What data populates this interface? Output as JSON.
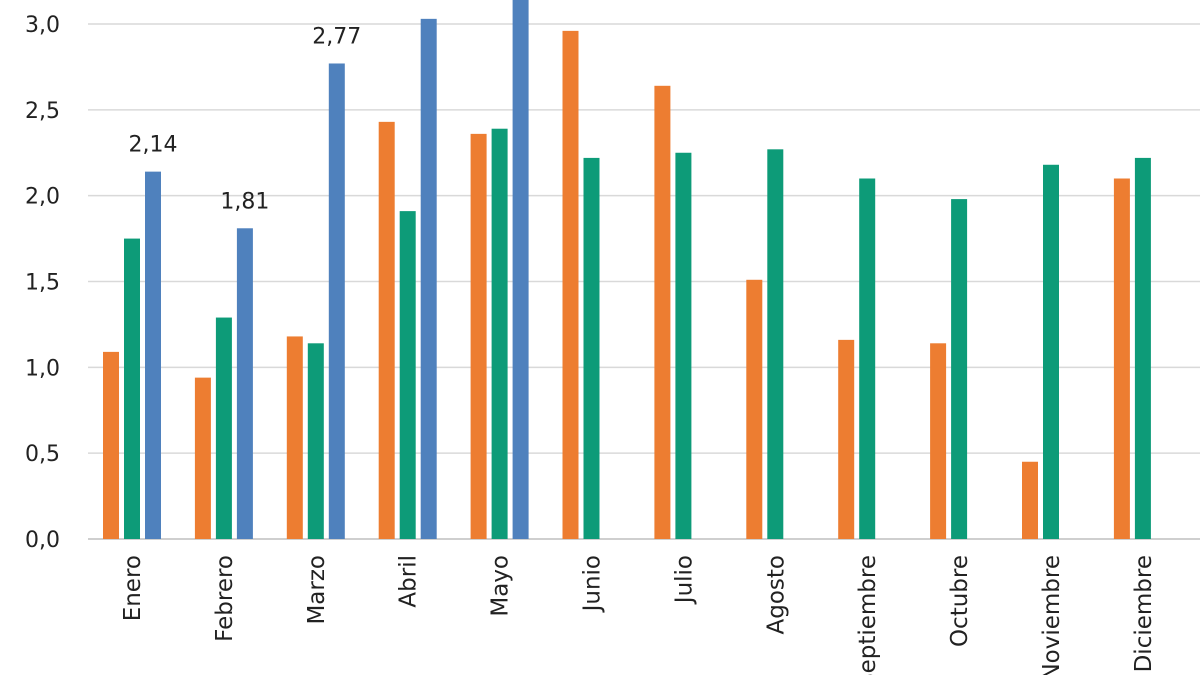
{
  "chart_data": {
    "type": "bar",
    "title": "",
    "xlabel": "",
    "ylabel": "",
    "ylim": [
      0,
      3.0
    ],
    "yticks": [
      "0,0",
      "0,5",
      "1,0",
      "1,5",
      "2,0",
      "2,5",
      "3,0"
    ],
    "grid": true,
    "categories": [
      "Enero",
      "Febrero",
      "Marzo",
      "Abril",
      "Mayo",
      "Junio",
      "Julio",
      "Agosto",
      "Septiembre",
      "Octubre",
      "Noviembre",
      "Diciembre"
    ],
    "series": [
      {
        "color": "#ed7d31",
        "values": [
          1.09,
          0.94,
          1.18,
          2.43,
          2.36,
          2.96,
          2.64,
          1.51,
          1.16,
          1.14,
          0.45,
          2.1
        ]
      },
      {
        "color": "#0d9b78",
        "values": [
          1.75,
          1.29,
          1.14,
          1.91,
          2.39,
          2.22,
          2.25,
          2.27,
          2.1,
          1.98,
          2.18,
          2.22
        ]
      },
      {
        "color": "#4f81bd",
        "values": [
          2.14,
          1.81,
          2.77,
          3.03,
          3.2,
          null,
          null,
          null,
          null,
          null,
          null,
          null
        ],
        "data_labels": [
          "2,14",
          "1,81",
          "2,77",
          null,
          null,
          null,
          null,
          null,
          null,
          null,
          null,
          null
        ]
      }
    ]
  }
}
